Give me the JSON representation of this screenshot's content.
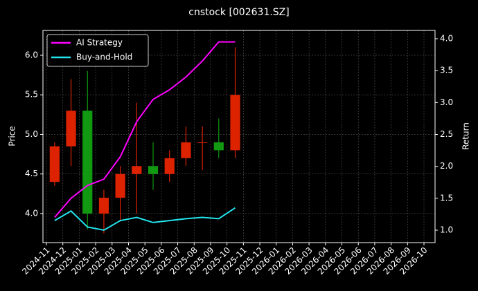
{
  "chart_data": {
    "type": "candlestick",
    "title": "cnstock [002631.SZ]",
    "y_label": "Price",
    "y2_label": "Return",
    "x": [
      "2024-11",
      "2024-12",
      "2025-01",
      "2025-02",
      "2025-03",
      "2025-04",
      "2025-05",
      "2025-06",
      "2025-07",
      "2025-08",
      "2025-09",
      "2025-10"
    ],
    "open": [
      4.4,
      4.85,
      5.3,
      4.0,
      4.2,
      4.5,
      4.6,
      4.5,
      4.7,
      4.9,
      4.9,
      4.8
    ],
    "high": [
      4.9,
      5.7,
      5.8,
      4.3,
      4.6,
      5.4,
      4.9,
      4.8,
      5.1,
      5.1,
      5.2,
      6.1
    ],
    "low": [
      4.35,
      4.6,
      3.8,
      3.75,
      3.9,
      4.0,
      4.3,
      4.4,
      4.6,
      4.55,
      4.7,
      4.7
    ],
    "close": [
      4.85,
      5.3,
      4.0,
      4.2,
      4.5,
      4.6,
      4.5,
      4.7,
      4.9,
      4.9,
      4.8,
      5.5
    ],
    "up_color": "#dd2200",
    "down_color": "#119911",
    "series": [
      {
        "name": "AI Strategy",
        "color": "#ff00ff",
        "axis": "y2",
        "values": [
          1.2,
          1.5,
          1.7,
          1.8,
          2.15,
          2.7,
          3.05,
          3.2,
          3.4,
          3.65,
          3.95,
          3.95
        ]
      },
      {
        "name": "Buy-and-Hold",
        "color": "#22e5ee",
        "axis": "y2",
        "values": [
          1.15,
          1.3,
          1.05,
          1.0,
          1.15,
          1.2,
          1.12,
          1.15,
          1.18,
          1.2,
          1.18,
          1.35
        ]
      }
    ],
    "xticks": [
      "2024-11",
      "2024-12",
      "2025-01",
      "2025-02",
      "2025-03",
      "2025-04",
      "2025-05",
      "2025-06",
      "2025-07",
      "2025-08",
      "2025-09",
      "2025-10",
      "2025-11",
      "2025-12",
      "2026-01",
      "2026-02",
      "2026-03",
      "2026-04",
      "2026-05",
      "2026-06",
      "2026-07",
      "2026-08",
      "2026-09",
      "2026-10"
    ],
    "ylim": [
      3.633,
      6.314
    ],
    "yticks": [
      {
        "value": 4,
        "label": "4.0"
      },
      4.5,
      {
        "value": 5,
        "label": "5.0"
      },
      5.5,
      {
        "value": 6,
        "label": "6.0"
      }
    ],
    "y2lim": [
      0.805,
      4.13
    ],
    "y2ticks": [
      {
        "value": 1,
        "label": "1.0"
      },
      1.5,
      {
        "value": 2,
        "label": "2.0"
      },
      2.5,
      {
        "value": 3,
        "label": "3.0"
      },
      3.5,
      {
        "value": 4,
        "label": "4.0"
      }
    ],
    "grid": true,
    "legend": "upper left"
  }
}
